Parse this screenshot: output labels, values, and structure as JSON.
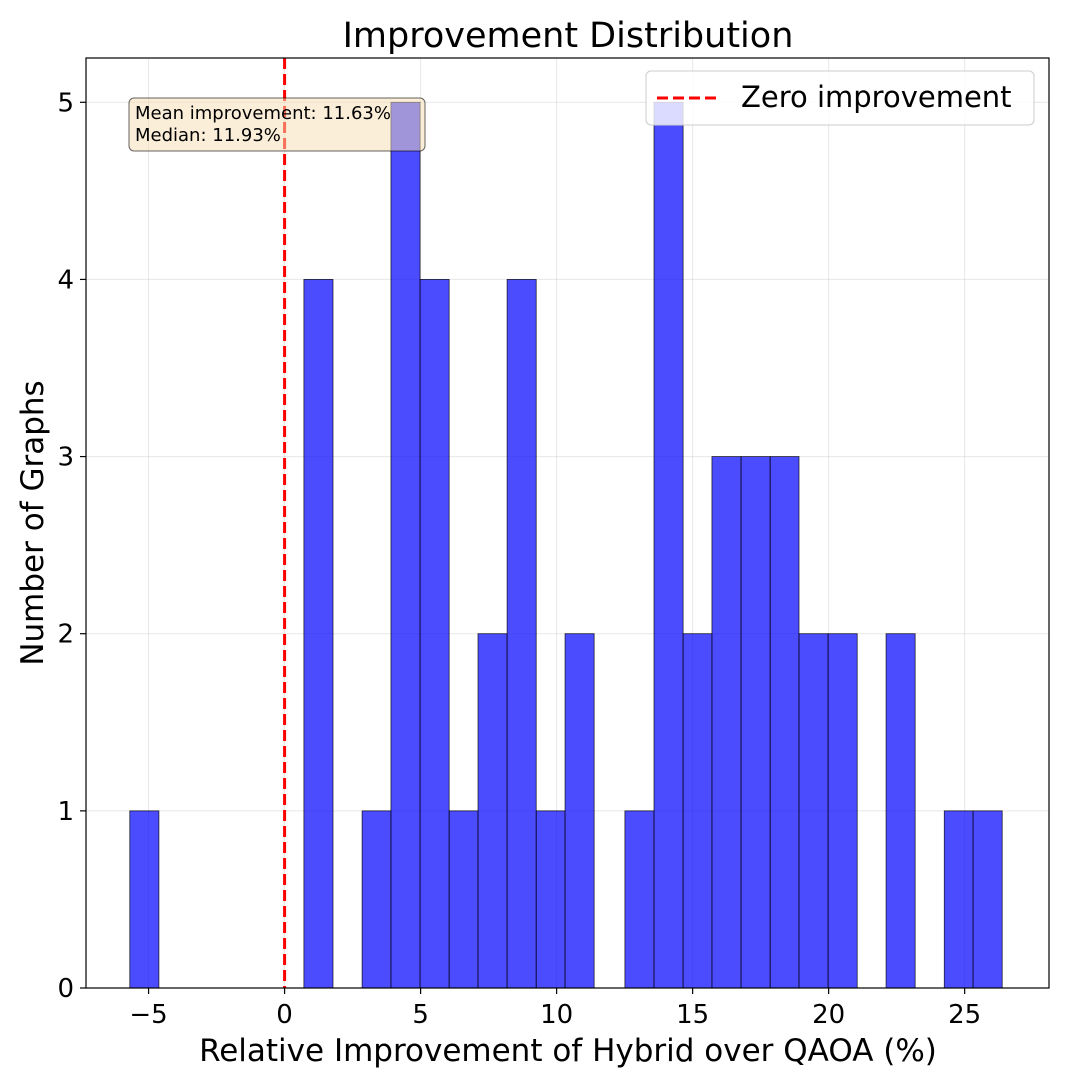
{
  "chart_data": {
    "type": "bar",
    "subtype": "histogram",
    "title": "Improvement Distribution",
    "xlabel": "Relative Improvement of Hybrid over QAOA (%)",
    "ylabel": "Number of Graphs",
    "xlim": [
      -7.3,
      28.1
    ],
    "ylim": [
      0,
      5.25
    ],
    "xticks": [
      -5,
      0,
      5,
      10,
      15,
      20,
      25
    ],
    "xtick_labels": [
      "−5",
      "0",
      "5",
      "10",
      "15",
      "20",
      "25"
    ],
    "yticks": [
      0,
      1,
      2,
      3,
      4,
      5
    ],
    "ytick_labels": [
      "0",
      "1",
      "2",
      "3",
      "4",
      "5"
    ],
    "grid": true,
    "bar_color": "#0000ff",
    "bar_opacity": 0.7,
    "bar_edge_color": "#000000",
    "bins": [
      {
        "start": -5.69,
        "end": -4.62,
        "count": 1
      },
      {
        "start": 0.71,
        "end": 1.78,
        "count": 4
      },
      {
        "start": 2.85,
        "end": 3.91,
        "count": 1
      },
      {
        "start": 3.91,
        "end": 4.98,
        "count": 5
      },
      {
        "start": 4.98,
        "end": 6.05,
        "count": 4
      },
      {
        "start": 6.05,
        "end": 7.11,
        "count": 1
      },
      {
        "start": 7.11,
        "end": 8.18,
        "count": 2
      },
      {
        "start": 8.18,
        "end": 9.25,
        "count": 4
      },
      {
        "start": 9.25,
        "end": 10.31,
        "count": 1
      },
      {
        "start": 10.31,
        "end": 11.38,
        "count": 2
      },
      {
        "start": 12.51,
        "end": 13.58,
        "count": 1
      },
      {
        "start": 13.58,
        "end": 14.65,
        "count": 5
      },
      {
        "start": 14.65,
        "end": 15.71,
        "count": 2
      },
      {
        "start": 15.71,
        "end": 16.78,
        "count": 3
      },
      {
        "start": 16.78,
        "end": 17.85,
        "count": 3
      },
      {
        "start": 17.85,
        "end": 18.91,
        "count": 3
      },
      {
        "start": 18.91,
        "end": 19.98,
        "count": 2
      },
      {
        "start": 19.98,
        "end": 21.05,
        "count": 2
      },
      {
        "start": 22.11,
        "end": 23.18,
        "count": 2
      },
      {
        "start": 24.25,
        "end": 25.31,
        "count": 1
      },
      {
        "start": 25.31,
        "end": 26.38,
        "count": 1
      }
    ],
    "reference_line": {
      "x": 0,
      "color": "#ff0000",
      "style": "dashed",
      "label": "Zero improvement"
    },
    "legend": {
      "position": "top-right",
      "entries": [
        "Zero improvement"
      ]
    },
    "annotation": {
      "position": "top-left",
      "lines": [
        "Mean improvement: 11.63%",
        "Median: 11.93%"
      ],
      "background": "#f5deb3"
    }
  }
}
